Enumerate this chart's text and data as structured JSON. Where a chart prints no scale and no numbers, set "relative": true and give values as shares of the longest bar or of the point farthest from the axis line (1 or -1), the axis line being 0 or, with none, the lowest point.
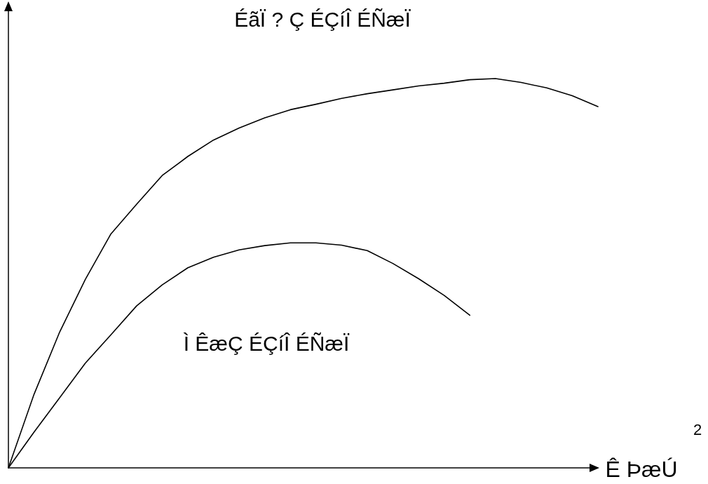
{
  "chart_data": {
    "type": "line",
    "relative": true,
    "xlabel": "Ê ÞæÚ",
    "annotations": [
      "2"
    ],
    "legend": false,
    "marker": "none",
    "line_style": "solid",
    "categories": [
      null,
      null,
      null,
      null,
      null,
      null,
      null,
      null,
      null,
      null,
      null,
      null,
      null,
      null,
      null,
      null,
      null,
      null,
      null,
      null,
      null,
      null,
      null,
      null
    ],
    "series": [
      {
        "name": "ÉãÏ ? Ç ÉÇíÎ ÉÑæÏ",
        "color": "#000000",
        "values": [
          0,
          0.189,
          0.349,
          0.484,
          0.601,
          0.677,
          0.751,
          0.8,
          0.842,
          0.873,
          0.899,
          0.92,
          0.934,
          0.949,
          0.961,
          0.971,
          0.981,
          0.988,
          0.997,
          1,
          0.99,
          0.976,
          0.956,
          0.928
        ]
      },
      {
        "name": "Ì ÊæÇ ÉÇíÎ ÉÑæÏ",
        "color": "#000000",
        "values": [
          0,
          0.092,
          0.18,
          0.269,
          0.342,
          0.416,
          0.47,
          0.514,
          0.541,
          0.56,
          0.571,
          0.578,
          0.578,
          0.572,
          0.558,
          0.525,
          0.486,
          0.443,
          0.392,
          null,
          null,
          null,
          null,
          null
        ]
      }
    ]
  }
}
